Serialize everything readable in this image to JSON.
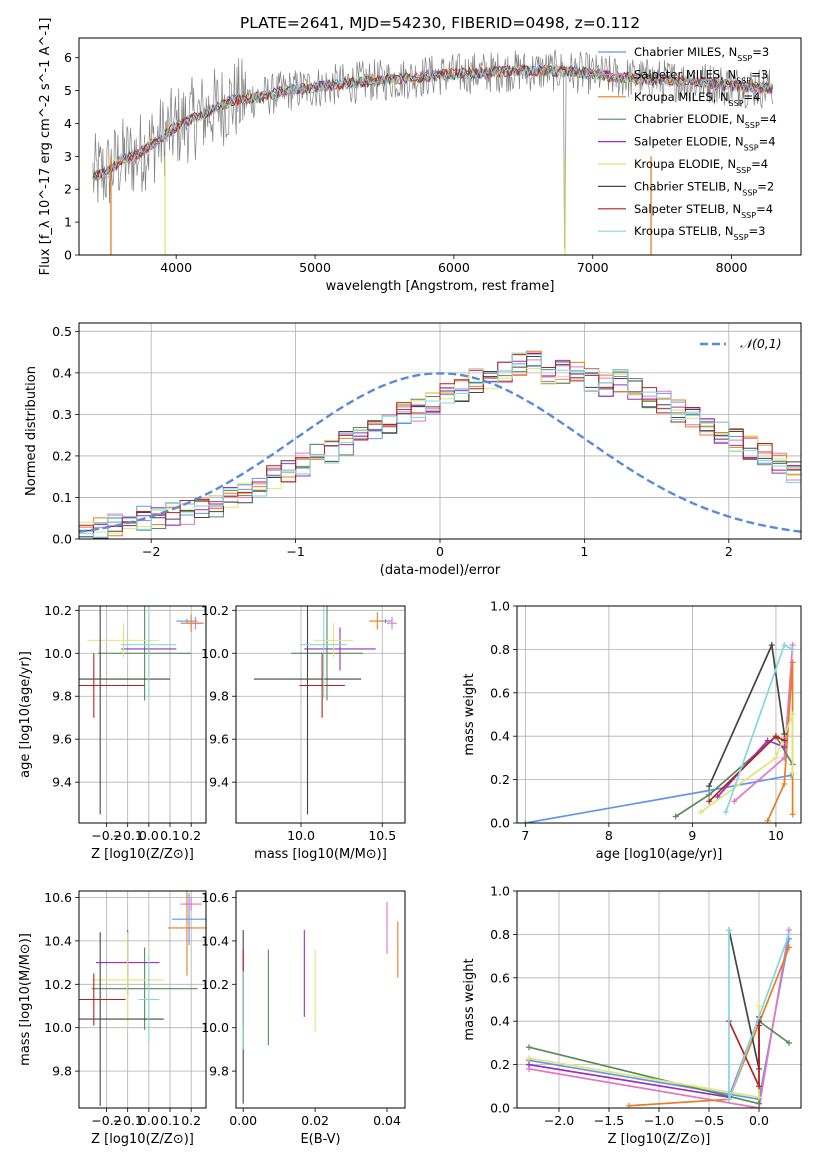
{
  "figure": {
    "title": "PLATE=2641, MJD=54230, FIBERID=0498, z=0.112"
  },
  "chart_data": [
    {
      "id": "spectrum",
      "type": "line",
      "title": "PLATE=2641, MJD=54230, FIBERID=0498, z=0.112",
      "xlabel": "wavelength [Angstrom, rest frame]",
      "ylabel": "Flux [f_λ 10^-17 erg cm^-2 s^-1 A^-1]",
      "xlim": [
        3300,
        8500
      ],
      "ylim": [
        0,
        6.6
      ],
      "xticks": [
        4000,
        5000,
        6000,
        7000,
        8000
      ],
      "yticks": [
        0,
        1,
        2,
        3,
        4,
        5,
        6
      ],
      "grid": false,
      "legend_position": "top-right",
      "continuum": {
        "x": [
          3400,
          3500,
          3600,
          3700,
          3800,
          3900,
          4000,
          4200,
          4400,
          4600,
          4800,
          5000,
          5200,
          5400,
          5600,
          5800,
          6000,
          6200,
          6400,
          6600,
          6800,
          7000,
          7200,
          7400,
          7600,
          7800,
          8000,
          8200,
          8300
        ],
        "y": [
          2.4,
          2.5,
          2.9,
          3.0,
          3.3,
          3.6,
          3.9,
          4.3,
          4.7,
          4.8,
          5.0,
          5.1,
          5.2,
          5.3,
          5.35,
          5.45,
          5.5,
          5.55,
          5.6,
          5.6,
          5.6,
          5.5,
          5.4,
          5.35,
          5.3,
          5.25,
          5.15,
          5.1,
          5.05
        ]
      },
      "series": [
        {
          "name": "Chabrier MILES",
          "nssp": "3",
          "color": "#6495ed"
        },
        {
          "name": "Salpeter MILES",
          "nssp": "3",
          "color": "#e377c2"
        },
        {
          "name": "Kroupa MILES",
          "nssp": "4",
          "color": "#e67e22"
        },
        {
          "name": "Chabrier ELODIE",
          "nssp": "4",
          "color": "#5a8a5a"
        },
        {
          "name": "Salpeter ELODIE",
          "nssp": "4",
          "color": "#9b30c0"
        },
        {
          "name": "Kroupa ELODIE",
          "nssp": "4",
          "color": "#dce775"
        },
        {
          "name": "Chabrier STELIB",
          "nssp": "2",
          "color": "#454545"
        },
        {
          "name": "Salpeter STELIB",
          "nssp": "4",
          "color": "#b22222"
        },
        {
          "name": "Kroupa STELIB",
          "nssp": "3",
          "color": "#80d8e0"
        }
      ]
    },
    {
      "id": "residuals",
      "type": "line",
      "xlabel": "(data-model)/error",
      "ylabel": "Normed distribution",
      "xlim": [
        -2.5,
        2.5
      ],
      "ylim": [
        0,
        0.52
      ],
      "xticks": [
        -2,
        -1,
        0,
        1,
        2
      ],
      "yticks": [
        0.0,
        0.1,
        0.2,
        0.3,
        0.4,
        0.5
      ],
      "grid": true,
      "legend_position": "top-right",
      "reference": {
        "name": "𝒩(0,1)",
        "mean": 0,
        "sigma": 1,
        "color": "#5b8ad8"
      },
      "histogram": {
        "bin_width": 0.1,
        "bin_start": -2.5,
        "counts": [
          0.02,
          0.025,
          0.03,
          0.04,
          0.05,
          0.055,
          0.06,
          0.065,
          0.07,
          0.08,
          0.1,
          0.115,
          0.13,
          0.15,
          0.165,
          0.18,
          0.2,
          0.21,
          0.23,
          0.25,
          0.27,
          0.28,
          0.3,
          0.31,
          0.33,
          0.35,
          0.36,
          0.38,
          0.39,
          0.4,
          0.42,
          0.43,
          0.39,
          0.4,
          0.41,
          0.38,
          0.37,
          0.38,
          0.36,
          0.34,
          0.33,
          0.31,
          0.29,
          0.28,
          0.26,
          0.24,
          0.22,
          0.2,
          0.18,
          0.16
        ]
      }
    },
    {
      "id": "age-vs-Z",
      "type": "scatter",
      "xlabel": "Z [log10(Z/Z⊙)]",
      "ylabel": "age [log10(age/yr)]",
      "xlim": [
        -0.33,
        0.27
      ],
      "ylim": [
        9.21,
        10.22
      ],
      "xticks": [
        "-0.2",
        "-0.1",
        "0.0",
        "0.1",
        "0.2"
      ],
      "yticks": [
        "9.4",
        "9.6",
        "9.8",
        "10.0",
        "10.2"
      ],
      "grid": true
    },
    {
      "id": "age-vs-mass",
      "type": "scatter",
      "xlabel": "mass [log10(M/M⊙)]",
      "ylabel": "",
      "xlim": [
        9.6,
        10.64
      ],
      "ylim": [
        9.21,
        10.22
      ],
      "xticks": [
        "10.0",
        "10.5"
      ],
      "yticks": [
        "9.4",
        "9.6",
        "9.8",
        "10.0",
        "10.2"
      ],
      "grid": true
    },
    {
      "id": "massweight-vs-age",
      "type": "line",
      "xlabel": "age [log10(age/yr)]",
      "ylabel": "mass weight",
      "xlim": [
        6.9,
        10.3
      ],
      "ylim": [
        0,
        1.0
      ],
      "xticks": [
        "7",
        "8",
        "9",
        "10"
      ],
      "yticks": [
        "0.0",
        "0.2",
        "0.4",
        "0.6",
        "0.8",
        "1.0"
      ],
      "grid": true
    },
    {
      "id": "mass-vs-Z",
      "type": "scatter",
      "xlabel": "Z [log10(Z/Z⊙)]",
      "ylabel": "mass [log10(M/M⊙)]",
      "xlim": [
        -0.33,
        0.27
      ],
      "ylim": [
        9.63,
        10.63
      ],
      "xticks": [
        "-0.2",
        "-0.1",
        "0.0",
        "0.1",
        "0.2"
      ],
      "yticks": [
        "9.8",
        "10.0",
        "10.2",
        "10.4",
        "10.6"
      ],
      "grid": true
    },
    {
      "id": "mass-vs-ebv",
      "type": "scatter",
      "xlabel": "E(B-V)",
      "ylabel": "",
      "xlim": [
        -0.002,
        0.045
      ],
      "ylim": [
        9.63,
        10.63
      ],
      "xticks": [
        "0.00",
        "0.02",
        "0.04"
      ],
      "yticks": [
        "9.8",
        "10.0",
        "10.2",
        "10.4",
        "10.6"
      ],
      "grid": false
    },
    {
      "id": "massweight-vs-Z",
      "type": "line",
      "xlabel": "Z [log10(Z/Z⊙)]",
      "ylabel": "mass weight",
      "xlim": [
        -2.42,
        0.42
      ],
      "ylim": [
        0,
        1.0
      ],
      "xticks": [
        "-2.0",
        "-1.5",
        "-1.0",
        "-0.5",
        "0.0"
      ],
      "yticks": [
        "0.0",
        "0.2",
        "0.4",
        "0.6",
        "0.8",
        "1.0"
      ],
      "grid": true
    }
  ]
}
